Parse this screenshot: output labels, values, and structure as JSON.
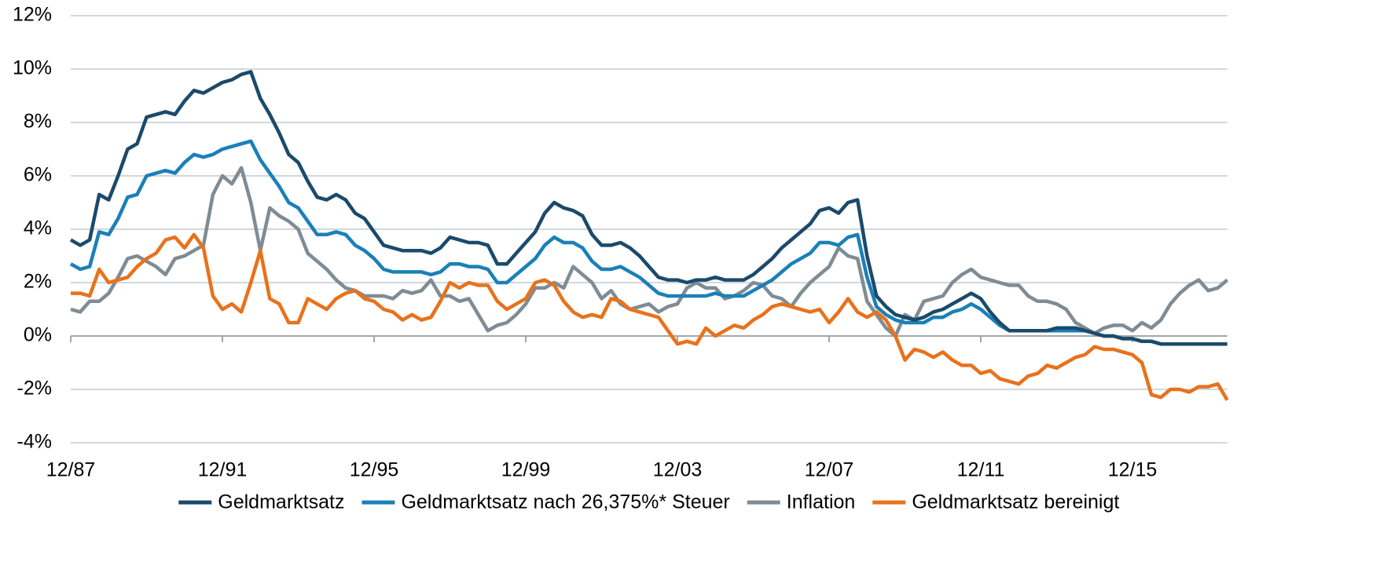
{
  "chart_data": {
    "type": "line",
    "categories": [
      "12/87",
      null,
      null,
      null,
      null,
      null,
      null,
      null,
      null,
      null,
      null,
      null,
      null,
      null,
      null,
      null,
      "12/91",
      null,
      null,
      null,
      null,
      null,
      null,
      null,
      null,
      null,
      null,
      null,
      null,
      null,
      null,
      null,
      "12/95",
      null,
      null,
      null,
      null,
      null,
      null,
      null,
      null,
      null,
      null,
      null,
      null,
      null,
      null,
      null,
      "12/99",
      null,
      null,
      null,
      null,
      null,
      null,
      null,
      null,
      null,
      null,
      null,
      null,
      null,
      null,
      null,
      "12/03",
      null,
      null,
      null,
      null,
      null,
      null,
      null,
      null,
      null,
      null,
      null,
      null,
      null,
      null,
      null,
      "12/07",
      null,
      null,
      null,
      null,
      null,
      null,
      null,
      null,
      null,
      null,
      null,
      null,
      null,
      null,
      null,
      "12/11",
      null,
      null,
      null,
      null,
      null,
      null,
      null,
      null,
      null,
      null,
      null,
      null,
      null,
      null,
      null,
      "12/15",
      null,
      null,
      null,
      null,
      null,
      null,
      null,
      null,
      null,
      null
    ],
    "series": [
      {
        "name": "Geldmarktsatz",
        "color": "#1b4a6b",
        "values": [
          3.6,
          3.4,
          3.6,
          5.3,
          5.1,
          6.0,
          7.0,
          7.2,
          8.2,
          8.3,
          8.4,
          8.3,
          8.8,
          9.2,
          9.1,
          9.3,
          9.5,
          9.6,
          9.8,
          9.9,
          8.9,
          8.3,
          7.6,
          6.8,
          6.5,
          5.8,
          5.2,
          5.1,
          5.3,
          5.1,
          4.6,
          4.4,
          3.9,
          3.4,
          3.3,
          3.2,
          3.2,
          3.2,
          3.1,
          3.3,
          3.7,
          3.6,
          3.5,
          3.5,
          3.4,
          2.7,
          2.7,
          3.1,
          3.5,
          3.9,
          4.6,
          5.0,
          4.8,
          4.7,
          4.5,
          3.8,
          3.4,
          3.4,
          3.5,
          3.3,
          3.0,
          2.6,
          2.2,
          2.1,
          2.1,
          2.0,
          2.1,
          2.1,
          2.2,
          2.1,
          2.1,
          2.1,
          2.3,
          2.6,
          2.9,
          3.3,
          3.6,
          3.9,
          4.2,
          4.7,
          4.8,
          4.6,
          5.0,
          5.1,
          3.0,
          1.5,
          1.1,
          0.8,
          0.7,
          0.6,
          0.7,
          0.9,
          1.0,
          1.2,
          1.4,
          1.6,
          1.4,
          0.9,
          0.5,
          0.2,
          0.2,
          0.2,
          0.2,
          0.2,
          0.3,
          0.3,
          0.3,
          0.2,
          0.1,
          0.0,
          0.0,
          -0.1,
          -0.1,
          -0.2,
          -0.2,
          -0.3,
          -0.3,
          -0.3,
          -0.3,
          -0.3,
          -0.3,
          -0.3,
          -0.3
        ]
      },
      {
        "name": "Geldmarktsatz nach 26,375%* Steuer",
        "color": "#1a80b8",
        "values": [
          2.7,
          2.5,
          2.6,
          3.9,
          3.8,
          4.4,
          5.2,
          5.3,
          6.0,
          6.1,
          6.2,
          6.1,
          6.5,
          6.8,
          6.7,
          6.8,
          7.0,
          7.1,
          7.2,
          7.3,
          6.6,
          6.1,
          5.6,
          5.0,
          4.8,
          4.3,
          3.8,
          3.8,
          3.9,
          3.8,
          3.4,
          3.2,
          2.9,
          2.5,
          2.4,
          2.4,
          2.4,
          2.4,
          2.3,
          2.4,
          2.7,
          2.7,
          2.6,
          2.6,
          2.5,
          2.0,
          2.0,
          2.3,
          2.6,
          2.9,
          3.4,
          3.7,
          3.5,
          3.5,
          3.3,
          2.8,
          2.5,
          2.5,
          2.6,
          2.4,
          2.2,
          1.9,
          1.6,
          1.5,
          1.5,
          1.5,
          1.5,
          1.5,
          1.6,
          1.5,
          1.5,
          1.5,
          1.7,
          1.9,
          2.1,
          2.4,
          2.7,
          2.9,
          3.1,
          3.5,
          3.5,
          3.4,
          3.7,
          3.8,
          2.2,
          1.1,
          0.8,
          0.6,
          0.5,
          0.5,
          0.5,
          0.7,
          0.7,
          0.9,
          1.0,
          1.2,
          1.0,
          0.7,
          0.4,
          0.2,
          0.2,
          0.2,
          0.2,
          0.2,
          0.2,
          0.2,
          0.2,
          0.2,
          0.1,
          0.0,
          0.0,
          -0.1,
          -0.1,
          -0.2,
          -0.2,
          -0.3,
          -0.3,
          -0.3,
          -0.3,
          -0.3,
          -0.3,
          -0.3,
          -0.3
        ]
      },
      {
        "name": "Inflation",
        "color": "#7f8c95",
        "values": [
          1.0,
          0.9,
          1.3,
          1.3,
          1.6,
          2.2,
          2.9,
          3.0,
          2.8,
          2.6,
          2.3,
          2.9,
          3.0,
          3.2,
          3.4,
          5.3,
          6.0,
          5.7,
          6.3,
          5.0,
          3.2,
          4.8,
          4.5,
          4.3,
          4.0,
          3.1,
          2.8,
          2.5,
          2.1,
          1.8,
          1.7,
          1.5,
          1.5,
          1.5,
          1.4,
          1.7,
          1.6,
          1.7,
          2.1,
          1.5,
          1.5,
          1.3,
          1.4,
          0.8,
          0.2,
          0.4,
          0.5,
          0.8,
          1.2,
          1.8,
          1.8,
          2.0,
          1.8,
          2.6,
          2.3,
          2.0,
          1.4,
          1.7,
          1.2,
          1.0,
          1.1,
          1.2,
          0.9,
          1.1,
          1.2,
          1.8,
          2.0,
          1.8,
          1.8,
          1.4,
          1.5,
          1.7,
          2.0,
          1.9,
          1.5,
          1.4,
          1.1,
          1.6,
          2.0,
          2.3,
          2.6,
          3.3,
          3.0,
          2.9,
          1.3,
          0.8,
          0.3,
          0.0,
          0.8,
          0.6,
          1.3,
          1.4,
          1.5,
          2.0,
          2.3,
          2.5,
          2.2,
          2.1,
          2.0,
          1.9,
          1.9,
          1.5,
          1.3,
          1.3,
          1.2,
          1.0,
          0.5,
          0.3,
          0.1,
          0.3,
          0.4,
          0.4,
          0.2,
          0.5,
          0.3,
          0.6,
          1.2,
          1.6,
          1.9,
          2.1,
          1.7,
          1.8,
          2.1
        ]
      },
      {
        "name": "Geldmarktsatz bereinigt",
        "color": "#e8721c",
        "values": [
          1.6,
          1.6,
          1.5,
          2.5,
          2.0,
          2.1,
          2.2,
          2.6,
          2.9,
          3.1,
          3.6,
          3.7,
          3.3,
          3.8,
          3.3,
          1.5,
          1.0,
          1.2,
          0.9,
          2.0,
          3.2,
          1.4,
          1.2,
          0.5,
          0.5,
          1.4,
          1.2,
          1.0,
          1.4,
          1.6,
          1.7,
          1.4,
          1.3,
          1.0,
          0.9,
          0.6,
          0.8,
          0.6,
          0.7,
          1.3,
          2.0,
          1.8,
          2.0,
          1.9,
          1.9,
          1.3,
          1.0,
          1.2,
          1.4,
          2.0,
          2.1,
          1.9,
          1.3,
          0.9,
          0.7,
          0.8,
          0.7,
          1.4,
          1.3,
          1.0,
          0.9,
          0.8,
          0.7,
          0.2,
          -0.3,
          -0.2,
          -0.3,
          0.3,
          0.0,
          0.2,
          0.4,
          0.3,
          0.6,
          0.8,
          1.1,
          1.2,
          1.1,
          1.0,
          0.9,
          1.0,
          0.5,
          0.9,
          1.4,
          0.9,
          0.7,
          0.9,
          0.6,
          0.0,
          -0.9,
          -0.5,
          -0.6,
          -0.8,
          -0.6,
          -0.9,
          -1.1,
          -1.1,
          -1.4,
          -1.3,
          -1.6,
          -1.7,
          -1.8,
          -1.5,
          -1.4,
          -1.1,
          -1.2,
          -1.0,
          -0.8,
          -0.7,
          -0.4,
          -0.5,
          -0.5,
          -0.6,
          -0.7,
          -1.0,
          -2.2,
          -2.3,
          -2.0,
          -2.0,
          -2.1,
          -1.9,
          -1.9,
          -1.8,
          -2.4
        ]
      }
    ],
    "ylim": [
      -4,
      12
    ],
    "yticks": [
      {
        "value": -4,
        "label": "-4%"
      },
      {
        "value": -2,
        "label": "-2%"
      },
      {
        "value": 0,
        "label": "0%"
      },
      {
        "value": 2,
        "label": "2%"
      },
      {
        "value": 4,
        "label": "4%"
      },
      {
        "value": 6,
        "label": "6%"
      },
      {
        "value": 8,
        "label": "8%"
      },
      {
        "value": 10,
        "label": "10%"
      },
      {
        "value": 12,
        "label": "12%"
      }
    ],
    "grid": true,
    "legend": "bottom"
  }
}
